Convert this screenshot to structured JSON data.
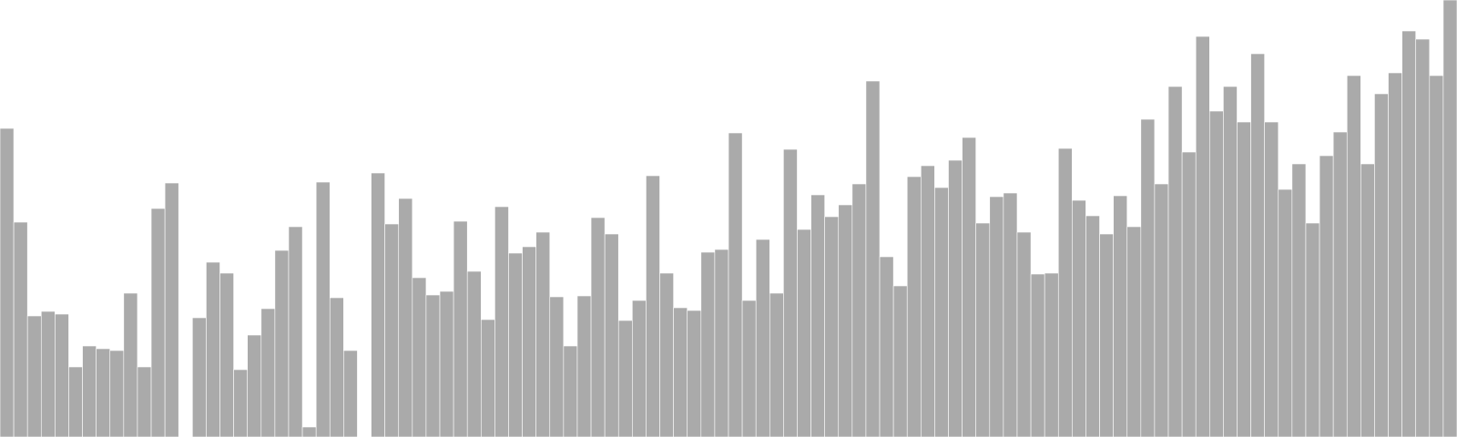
{
  "chart_data": {
    "type": "bar",
    "title": "",
    "xlabel": "",
    "ylabel": "",
    "grid": false,
    "legend": "none",
    "ylim": [
      0,
      480
    ],
    "bar_color": "#aaaaaa",
    "bar_edge_color": "#ffffff",
    "values": [
      339,
      236,
      133,
      138,
      135,
      77,
      100,
      97,
      95,
      158,
      77,
      251,
      279,
      0,
      131,
      192,
      180,
      74,
      112,
      141,
      205,
      231,
      11,
      280,
      153,
      95,
      0,
      290,
      234,
      262,
      175,
      156,
      160,
      237,
      182,
      129,
      253,
      202,
      209,
      225,
      154,
      100,
      155,
      241,
      223,
      128,
      150,
      287,
      180,
      142,
      139,
      203,
      206,
      334,
      150,
      217,
      158,
      316,
      228,
      266,
      242,
      255,
      278,
      391,
      198,
      166,
      286,
      298,
      274,
      304,
      329,
      235,
      264,
      268,
      225,
      179,
      180,
      317,
      260,
      243,
      223,
      265,
      231,
      349,
      278,
      385,
      313,
      440,
      358,
      385,
      346,
      421,
      346,
      272,
      300,
      235,
      309,
      335,
      397,
      300,
      377,
      400,
      446,
      437,
      397,
      480
    ]
  }
}
